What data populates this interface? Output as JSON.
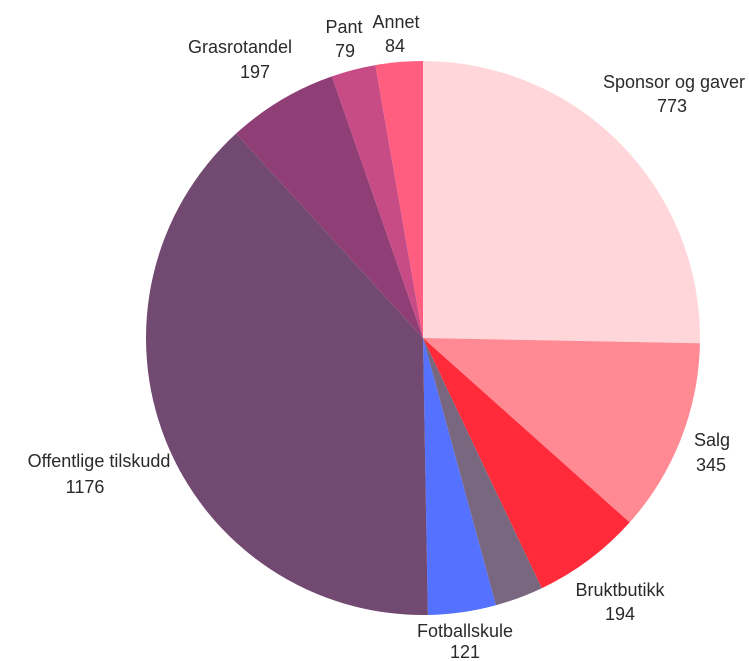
{
  "chart_data": {
    "type": "pie",
    "title": "",
    "start": "top",
    "direction": "clockwise",
    "legend": "none",
    "slices": [
      {
        "label": "Sponsor og gaver",
        "value": 773,
        "color": "#FFD7DA"
      },
      {
        "label": "Salg",
        "value": 345,
        "color": "#FF8A93"
      },
      {
        "label": "Bruktbutikk",
        "value": 194,
        "color": "#FF2B3A"
      },
      {
        "label": "",
        "value": 86,
        "color": "#78677F"
      },
      {
        "label": "Fotballskule",
        "value": 121,
        "color": "#5472FF"
      },
      {
        "label": "Offentlige tilskudd",
        "value": 1176,
        "color": "#724970"
      },
      {
        "label": "Grasrotandel",
        "value": 197,
        "color": "#903F76"
      },
      {
        "label": "Pant",
        "value": 79,
        "color": "#C74B84"
      },
      {
        "label": "Annet",
        "value": 84,
        "color": "#FF5E81"
      }
    ]
  }
}
